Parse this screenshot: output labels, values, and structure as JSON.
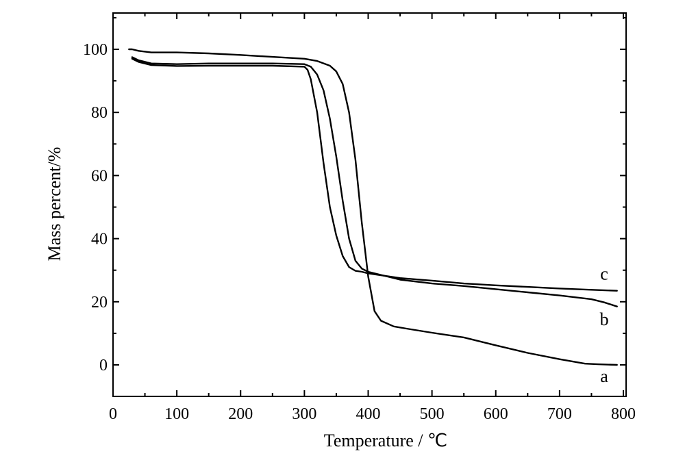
{
  "chart_data": {
    "type": "line",
    "xlabel": "Temperature / ℃",
    "ylabel": "Mass percent/%",
    "xlim": [
      0,
      800
    ],
    "ylim": [
      -10,
      110
    ],
    "xticks": [
      0,
      100,
      200,
      300,
      400,
      500,
      600,
      700,
      800
    ],
    "yticks": [
      0,
      20,
      40,
      60,
      80,
      100
    ],
    "grid": false,
    "legend": "none",
    "series": [
      {
        "name": "a",
        "x": [
          25,
          30,
          40,
          60,
          100,
          150,
          200,
          250,
          300,
          320,
          340,
          350,
          360,
          370,
          380,
          390,
          400,
          410,
          420,
          440,
          460,
          500,
          550,
          600,
          650,
          700,
          740,
          760,
          790
        ],
        "y": [
          100,
          100,
          99.5,
          99,
          99,
          98.7,
          98.2,
          97.6,
          97,
          96.3,
          94.8,
          93,
          89,
          80,
          65,
          45,
          28,
          17,
          14,
          12.2,
          11.5,
          10.2,
          8.7,
          6.2,
          3.8,
          1.8,
          0.4,
          0.2,
          0
        ]
      },
      {
        "name": "b",
        "x": [
          30,
          40,
          60,
          100,
          150,
          200,
          250,
          300,
          310,
          320,
          330,
          340,
          350,
          360,
          370,
          380,
          390,
          400,
          450,
          500,
          550,
          600,
          650,
          700,
          750,
          770,
          790
        ],
        "y": [
          97.5,
          96.5,
          95.5,
          95.3,
          95.5,
          95.5,
          95.5,
          95.3,
          94.5,
          92,
          87,
          78,
          66,
          52,
          40,
          33,
          30.5,
          29.5,
          27,
          25.8,
          25,
          24,
          23,
          22,
          20.8,
          19.8,
          18.5
        ]
      },
      {
        "name": "c",
        "x": [
          30,
          40,
          60,
          100,
          150,
          200,
          250,
          300,
          305,
          310,
          320,
          330,
          340,
          350,
          360,
          370,
          380,
          390,
          400,
          450,
          500,
          550,
          600,
          650,
          700,
          750,
          790
        ],
        "y": [
          97,
          96,
          95,
          94.7,
          94.8,
          94.8,
          94.8,
          94.5,
          93.5,
          90.5,
          80,
          64,
          50,
          41,
          34.5,
          31,
          29.8,
          29.5,
          29,
          27.5,
          26.7,
          25.8,
          25.2,
          24.7,
          24.2,
          23.8,
          23.5
        ]
      }
    ],
    "annotations": [
      {
        "text": "a",
        "x": 770,
        "y": -3.5
      },
      {
        "text": "b",
        "x": 770,
        "y": 14.5
      },
      {
        "text": "c",
        "x": 770,
        "y": 29
      }
    ]
  }
}
